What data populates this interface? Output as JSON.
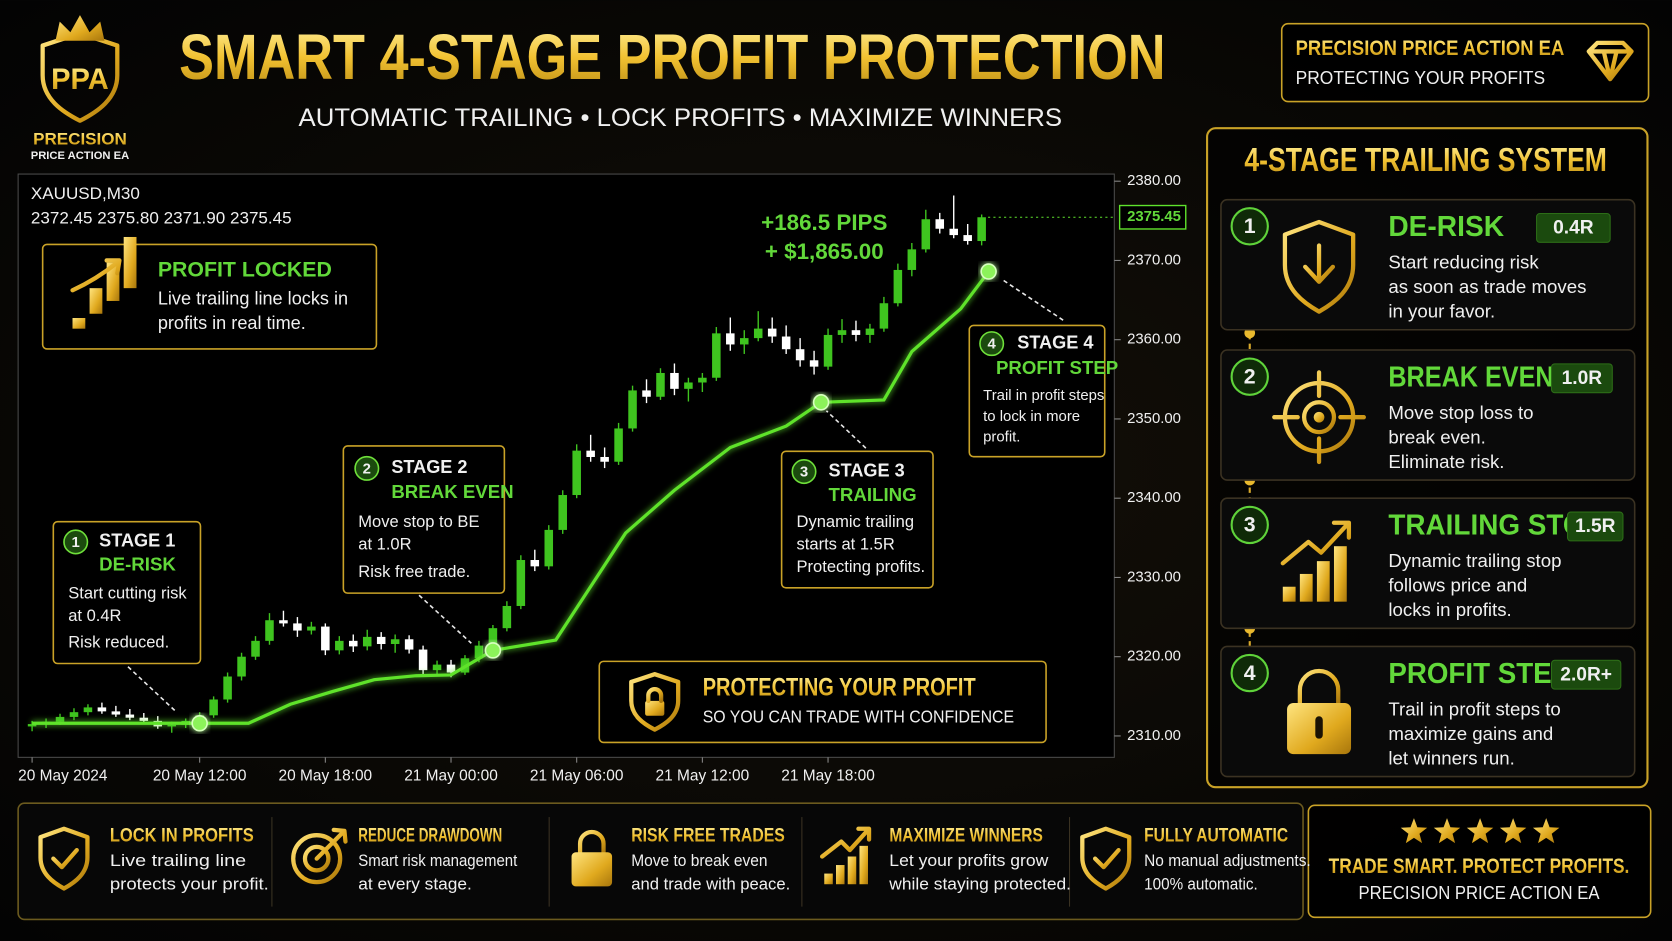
{
  "header": {
    "logo_mark": "PPA",
    "logo_name": "PRECISION",
    "logo_sub": "PRICE ACTION EA",
    "title": "SMART 4-STAGE PROFIT PROTECTION",
    "subtitle": "AUTOMATIC TRAILING • LOCK PROFITS • MAXIMIZE WINNERS"
  },
  "badge": {
    "title": "PRECISION PRICE ACTION EA",
    "subtitle": "PROTECTING YOUR PROFITS"
  },
  "chart_data": {
    "type": "candlestick",
    "symbol": "XAUUSD,M30",
    "ohlc_text": "2372.45 2375.80 2371.90 2375.45",
    "last_price": 2375.45,
    "annotations": [
      "+186.5 PIPS",
      "+ $1,865.00"
    ],
    "up_color": "#3fc41f",
    "down_color": "#ffffff",
    "trail_color": "#5fe32c",
    "x": [
      0,
      1,
      2,
      3,
      4,
      5,
      6,
      7,
      8,
      9,
      10,
      11,
      12,
      13,
      14,
      15,
      16,
      17,
      18,
      19,
      20,
      21,
      22,
      23,
      24,
      25,
      26,
      27,
      28,
      29,
      30,
      31,
      32,
      33,
      34,
      35,
      36,
      37,
      38,
      39,
      40,
      41,
      42,
      43,
      44,
      45,
      46,
      47,
      48,
      49,
      50,
      51,
      52,
      53,
      54,
      55,
      56,
      57,
      58,
      59,
      60,
      61,
      62,
      63,
      64,
      65,
      66,
      67,
      68
    ],
    "open": [
      2311.2,
      2311.5,
      2311.8,
      2312.4,
      2313.0,
      2313.6,
      2313.1,
      2312.7,
      2312.3,
      2311.9,
      2311.2,
      2311.4,
      2311.9,
      2312.6,
      2314.6,
      2317.5,
      2320.0,
      2322.0,
      2324.6,
      2324.2,
      2323.3,
      2323.8,
      2320.8,
      2322.0,
      2321.3,
      2322.5,
      2321.6,
      2322.2,
      2320.9,
      2318.3,
      2319.0,
      2318.0,
      2319.8,
      2321.4,
      2323.6,
      2326.4,
      2332.2,
      2331.4,
      2336.0,
      2340.4,
      2346.0,
      2345.2,
      2344.6,
      2348.8,
      2353.6,
      2352.8,
      2355.8,
      2353.8,
      2354.6,
      2355.2,
      2360.8,
      2359.4,
      2360.2,
      2361.4,
      2360.4,
      2358.8,
      2357.4,
      2356.6,
      2360.6,
      2361.2,
      2360.6,
      2361.4,
      2364.6,
      2368.8,
      2371.4,
      2375.2,
      2374.0,
      2373.2,
      2372.45
    ],
    "high": [
      2311.9,
      2312.2,
      2312.8,
      2313.5,
      2314.0,
      2314.2,
      2313.8,
      2313.4,
      2312.9,
      2312.5,
      2311.8,
      2312.2,
      2313.0,
      2315.0,
      2318.0,
      2320.5,
      2322.6,
      2325.5,
      2325.8,
      2325.0,
      2324.4,
      2324.2,
      2322.6,
      2322.8,
      2323.4,
      2323.1,
      2322.8,
      2322.7,
      2321.4,
      2319.5,
      2319.6,
      2320.2,
      2322.0,
      2324.0,
      2327.0,
      2332.8,
      2333.5,
      2336.6,
      2341.0,
      2346.8,
      2348.0,
      2346.4,
      2349.5,
      2354.2,
      2355.0,
      2356.4,
      2357.0,
      2355.2,
      2355.8,
      2361.6,
      2362.8,
      2361.2,
      2363.6,
      2362.8,
      2361.8,
      2360.2,
      2358.6,
      2361.4,
      2362.6,
      2362.4,
      2362.0,
      2365.4,
      2369.6,
      2372.2,
      2376.4,
      2376.0,
      2378.2,
      2374.6,
      2375.8
    ],
    "low": [
      2310.6,
      2311.0,
      2311.4,
      2312.0,
      2312.6,
      2312.8,
      2312.4,
      2312.0,
      2311.6,
      2310.9,
      2310.4,
      2311.0,
      2311.5,
      2312.3,
      2314.2,
      2317.0,
      2319.6,
      2321.5,
      2323.8,
      2322.5,
      2322.8,
      2320.2,
      2320.3,
      2320.6,
      2320.8,
      2320.9,
      2320.5,
      2320.4,
      2317.6,
      2317.8,
      2317.4,
      2317.7,
      2319.3,
      2321.0,
      2323.2,
      2326.0,
      2330.8,
      2331.0,
      2335.5,
      2340.0,
      2344.6,
      2343.8,
      2344.2,
      2348.4,
      2352.0,
      2352.4,
      2353.0,
      2352.2,
      2353.4,
      2354.8,
      2358.6,
      2358.2,
      2359.8,
      2359.6,
      2358.2,
      2356.6,
      2355.6,
      2356.2,
      2359.6,
      2359.8,
      2359.6,
      2361.0,
      2364.2,
      2368.0,
      2371.0,
      2373.4,
      2372.8,
      2372.0,
      2371.9
    ],
    "close": [
      2311.5,
      2311.8,
      2312.4,
      2313.0,
      2313.6,
      2313.1,
      2312.7,
      2312.3,
      2311.9,
      2311.2,
      2311.4,
      2311.9,
      2312.6,
      2314.6,
      2317.5,
      2320.0,
      2322.0,
      2324.6,
      2324.2,
      2323.3,
      2323.8,
      2320.8,
      2322.0,
      2321.3,
      2322.5,
      2321.6,
      2322.2,
      2320.9,
      2318.3,
      2319.0,
      2318.0,
      2319.8,
      2321.4,
      2323.6,
      2326.4,
      2332.2,
      2331.4,
      2336.0,
      2340.4,
      2346.0,
      2345.2,
      2344.6,
      2348.8,
      2353.6,
      2352.8,
      2355.8,
      2353.8,
      2354.6,
      2355.2,
      2360.8,
      2359.4,
      2360.2,
      2361.4,
      2360.4,
      2358.8,
      2357.4,
      2356.6,
      2360.6,
      2361.2,
      2360.6,
      2361.4,
      2364.6,
      2368.8,
      2371.4,
      2375.2,
      2374.0,
      2373.2,
      2372.45,
      2375.45
    ],
    "trail": {
      "x": [
        0,
        15.5,
        18.5,
        21.5,
        24.5,
        27.5,
        30,
        33,
        37.5,
        39.5,
        42.5,
        46,
        50,
        54,
        56.5,
        61,
        63,
        66.5,
        68.5
      ],
      "values": [
        2311.6,
        2311.6,
        2314.0,
        2315.6,
        2317.1,
        2317.6,
        2317.7,
        2320.8,
        2322.1,
        2327.5,
        2335.6,
        2341.0,
        2346.4,
        2349.1,
        2352.1,
        2352.4,
        2358.5,
        2363.9,
        2368.6
      ]
    },
    "markers": {
      "x": [
        12,
        33,
        56.5,
        68.5
      ],
      "values": [
        2311.6,
        2320.8,
        2352.1,
        2368.6
      ]
    },
    "xlim": [
      -1,
      77.5
    ],
    "xticks": [
      {
        "value": 0,
        "label": "20 May 2024"
      },
      {
        "value": 12,
        "label": "20 May 12:00"
      },
      {
        "value": 21,
        "label": "20 May 18:00"
      },
      {
        "value": 30,
        "label": "21 May 00:00"
      },
      {
        "value": 39,
        "label": "21 May 06:00"
      },
      {
        "value": 48,
        "label": "21 May 12:00"
      },
      {
        "value": 57,
        "label": "21 May 18:00"
      }
    ],
    "ylim": [
      2307.3,
      2380.9
    ],
    "yticks": [
      {
        "value": 2310,
        "label": "2310.00"
      },
      {
        "value": 2320,
        "label": "2320.00"
      },
      {
        "value": 2330,
        "label": "2330.00"
      },
      {
        "value": 2340,
        "label": "2340.00"
      },
      {
        "value": 2350,
        "label": "2350.00"
      },
      {
        "value": 2360,
        "label": "2360.00"
      },
      {
        "value": 2370,
        "label": "2370.00"
      },
      {
        "value": 2380,
        "label": "2380.00"
      }
    ]
  },
  "callouts": {
    "profit_locked": {
      "title": "PROFIT LOCKED",
      "lines": [
        "Live trailing line locks in",
        "profits in real time."
      ]
    },
    "stages": [
      {
        "number": 1,
        "label": "STAGE 1",
        "name": "DE-RISK",
        "lines": [
          "Start cutting risk",
          "at 0.4R",
          "Risk reduced."
        ]
      },
      {
        "number": 2,
        "label": "STAGE 2",
        "name": "BREAK EVEN",
        "lines": [
          "Move stop to BE",
          "at 1.0R",
          "Risk free trade."
        ]
      },
      {
        "number": 3,
        "label": "STAGE 3",
        "name": "TRAILING",
        "lines": [
          "Dynamic trailing",
          "starts at 1.5R",
          "Protecting profits."
        ]
      },
      {
        "number": 4,
        "label": "STAGE 4",
        "name": "PROFIT STEP",
        "lines": [
          "Trail in profit steps",
          "to lock in more",
          "profit."
        ]
      }
    ],
    "protect": {
      "title": "PROTECTING YOUR PROFIT",
      "subtitle": "SO YOU CAN TRADE WITH CONFIDENCE"
    }
  },
  "side_panel": {
    "title": "4-STAGE TRAILING SYSTEM",
    "items": [
      {
        "number": 1,
        "title": "DE-RISK",
        "level": "0.4R",
        "lines": [
          "Start reducing risk",
          "as soon as trade moves",
          "in your favor."
        ]
      },
      {
        "number": 2,
        "title": "BREAK EVEN",
        "level": "1.0R",
        "lines": [
          "Move stop loss to",
          "break even.",
          "Eliminate risk."
        ]
      },
      {
        "number": 3,
        "title": "TRAILING STOP",
        "level": "1.5R",
        "lines": [
          "Dynamic trailing stop",
          "follows price and",
          "locks in profits."
        ]
      },
      {
        "number": 4,
        "title": "PROFIT STEP",
        "level": "2.0R+",
        "lines": [
          "Trail in profit steps to",
          "maximize gains and",
          "let winners run."
        ]
      }
    ]
  },
  "features": [
    {
      "title": "LOCK IN PROFITS",
      "lines": [
        "Live trailing line",
        "protects your profit."
      ]
    },
    {
      "title": "REDUCE DRAWDOWN",
      "lines": [
        "Smart risk management",
        "at every stage."
      ]
    },
    {
      "title": "RISK FREE TRADES",
      "lines": [
        "Move to break even",
        "and trade with peace."
      ]
    },
    {
      "title": "MAXIMIZE WINNERS",
      "lines": [
        "Let your profits grow",
        "while staying protected."
      ]
    },
    {
      "title": "FULLY AUTOMATIC",
      "lines": [
        "No manual adjustments.",
        "100% automatic."
      ]
    }
  ],
  "footer_badge": {
    "tagline": "TRADE SMART. PROTECT PROFITS.",
    "name": "PRECISION PRICE ACTION EA"
  }
}
